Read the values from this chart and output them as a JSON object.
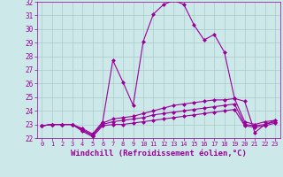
{
  "xlabel": "Windchill (Refroidissement éolien,°C)",
  "background_color": "#cde8e8",
  "grid_color": "#aacccc",
  "line_color": "#990099",
  "xmin": 0,
  "xmax": 23,
  "ymin": 22,
  "ymax": 32,
  "hours": [
    0,
    1,
    2,
    3,
    4,
    5,
    6,
    7,
    8,
    9,
    10,
    11,
    12,
    13,
    14,
    15,
    16,
    17,
    18,
    19,
    20,
    21,
    22,
    23
  ],
  "temp": [
    22.9,
    23.0,
    23.0,
    23.0,
    22.7,
    22.3,
    23.2,
    27.7,
    26.1,
    24.4,
    29.1,
    31.1,
    31.8,
    32.1,
    31.8,
    30.3,
    29.2,
    29.6,
    28.3,
    24.9,
    24.7,
    22.4,
    23.0,
    23.3
  ],
  "windchill": [
    22.9,
    23.0,
    23.0,
    23.0,
    22.6,
    22.2,
    23.1,
    23.4,
    23.5,
    23.6,
    23.8,
    24.0,
    24.2,
    24.4,
    24.5,
    24.6,
    24.7,
    24.8,
    24.8,
    24.9,
    23.2,
    23.0,
    23.2,
    23.3
  ],
  "apparent": [
    22.9,
    23.0,
    23.0,
    23.0,
    22.6,
    22.2,
    23.0,
    23.2,
    23.3,
    23.4,
    23.5,
    23.7,
    23.8,
    23.9,
    24.0,
    24.1,
    24.2,
    24.3,
    24.4,
    24.5,
    23.0,
    22.9,
    23.0,
    23.2
  ],
  "dew": [
    22.9,
    23.0,
    23.0,
    23.0,
    22.5,
    22.1,
    22.9,
    23.0,
    23.0,
    23.1,
    23.2,
    23.3,
    23.4,
    23.5,
    23.6,
    23.7,
    23.8,
    23.9,
    24.0,
    24.1,
    22.9,
    22.8,
    22.9,
    23.1
  ]
}
